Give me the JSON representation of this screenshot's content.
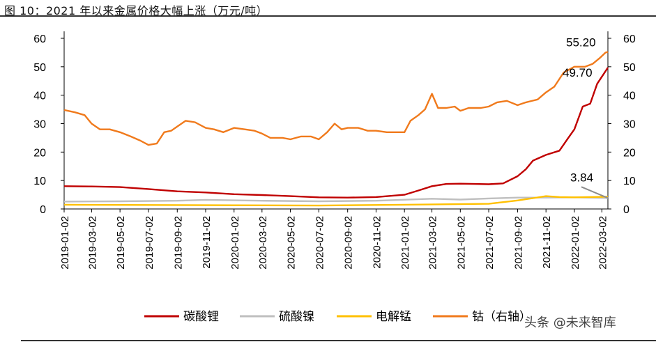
{
  "title": "图 10：2021 年以来金属价格大幅上涨（万元/吨）",
  "watermark": "头条 @未来智库",
  "colors": {
    "lithium_carbonate": "#c00000",
    "nickel_sulfate": "#bfbfbf",
    "manganese": "#ffc000",
    "cobalt": "#f07a1c",
    "axis": "#000000"
  },
  "chart_data": {
    "type": "line",
    "xlabel": "",
    "ylabel": "",
    "x_ticks": [
      "2019-01-02",
      "2019-03-02",
      "2019-05-02",
      "2019-07-02",
      "2019-09-02",
      "2019-11-02",
      "2020-01-02",
      "2020-03-02",
      "2020-05-02",
      "2020-07-02",
      "2020-09-02",
      "2020-11-02",
      "2021-01-02",
      "2021-03-02",
      "2021-05-02",
      "2021-07-02",
      "2021-09-02",
      "2021-11-02",
      "2022-01-02",
      "2022-03-02"
    ],
    "x_range": [
      "2019-01-02",
      "2022-03-15"
    ],
    "ylim_left": [
      0,
      60
    ],
    "ylim_right": [
      0,
      60
    ],
    "y_ticks": [
      0,
      10,
      20,
      30,
      40,
      50,
      60
    ],
    "legend_position": "bottom",
    "grid": false,
    "series": [
      {
        "name": "碳酸锂",
        "axis": "left",
        "points": [
          [
            "2019-01-02",
            8.0
          ],
          [
            "2019-03-02",
            7.9
          ],
          [
            "2019-05-02",
            7.7
          ],
          [
            "2019-07-02",
            7.0
          ],
          [
            "2019-09-02",
            6.2
          ],
          [
            "2019-11-02",
            5.8
          ],
          [
            "2020-01-02",
            5.2
          ],
          [
            "2020-03-02",
            4.9
          ],
          [
            "2020-05-02",
            4.5
          ],
          [
            "2020-07-02",
            4.1
          ],
          [
            "2020-09-02",
            4.0
          ],
          [
            "2020-11-02",
            4.2
          ],
          [
            "2021-01-02",
            5.0
          ],
          [
            "2021-02-01",
            6.5
          ],
          [
            "2021-03-02",
            8.0
          ],
          [
            "2021-04-02",
            8.8
          ],
          [
            "2021-05-02",
            8.9
          ],
          [
            "2021-06-02",
            8.8
          ],
          [
            "2021-07-02",
            8.7
          ],
          [
            "2021-08-02",
            9.0
          ],
          [
            "2021-09-02",
            11.5
          ],
          [
            "2021-09-20",
            14.0
          ],
          [
            "2021-10-05",
            17.0
          ],
          [
            "2021-11-02",
            19.0
          ],
          [
            "2021-12-01",
            20.5
          ],
          [
            "2021-12-20",
            25.0
          ],
          [
            "2022-01-02",
            28.0
          ],
          [
            "2022-01-20",
            36.0
          ],
          [
            "2022-02-05",
            37.0
          ],
          [
            "2022-02-20",
            44.0
          ],
          [
            "2022-03-15",
            49.7
          ]
        ]
      },
      {
        "name": "硫酸镍",
        "axis": "left",
        "points": [
          [
            "2019-01-02",
            2.6
          ],
          [
            "2019-05-02",
            2.7
          ],
          [
            "2019-09-02",
            2.9
          ],
          [
            "2019-11-02",
            3.2
          ],
          [
            "2020-03-02",
            2.9
          ],
          [
            "2020-07-02",
            2.7
          ],
          [
            "2020-11-02",
            2.9
          ],
          [
            "2021-03-02",
            3.6
          ],
          [
            "2021-05-02",
            3.3
          ],
          [
            "2021-07-02",
            3.7
          ],
          [
            "2021-09-02",
            4.0
          ],
          [
            "2021-11-02",
            4.0
          ],
          [
            "2022-01-02",
            4.1
          ],
          [
            "2022-03-15",
            3.84
          ]
        ]
      },
      {
        "name": "电解锰",
        "axis": "left",
        "points": [
          [
            "2019-01-02",
            1.5
          ],
          [
            "2019-07-02",
            1.4
          ],
          [
            "2020-01-02",
            1.3
          ],
          [
            "2020-07-02",
            1.2
          ],
          [
            "2021-01-02",
            1.5
          ],
          [
            "2021-07-02",
            1.8
          ],
          [
            "2021-09-02",
            3.0
          ],
          [
            "2021-10-05",
            3.8
          ],
          [
            "2021-11-02",
            4.5
          ],
          [
            "2021-12-01",
            4.2
          ],
          [
            "2022-01-02",
            4.1
          ],
          [
            "2022-03-15",
            4.3
          ]
        ]
      },
      {
        "name": "钴（右轴）",
        "axis": "right",
        "points": [
          [
            "2019-01-02",
            34.8
          ],
          [
            "2019-01-25",
            34.0
          ],
          [
            "2019-02-15",
            33.0
          ],
          [
            "2019-03-02",
            30.0
          ],
          [
            "2019-03-20",
            28.0
          ],
          [
            "2019-04-10",
            28.0
          ],
          [
            "2019-05-02",
            27.0
          ],
          [
            "2019-05-25",
            25.5
          ],
          [
            "2019-06-15",
            24.0
          ],
          [
            "2019-07-02",
            22.5
          ],
          [
            "2019-07-20",
            23.0
          ],
          [
            "2019-08-05",
            27.0
          ],
          [
            "2019-08-20",
            27.5
          ],
          [
            "2019-09-02",
            29.0
          ],
          [
            "2019-09-20",
            31.0
          ],
          [
            "2019-10-10",
            30.5
          ],
          [
            "2019-11-02",
            28.5
          ],
          [
            "2019-11-20",
            28.0
          ],
          [
            "2019-12-10",
            27.0
          ],
          [
            "2020-01-02",
            28.5
          ],
          [
            "2020-01-25",
            28.0
          ],
          [
            "2020-02-15",
            27.5
          ],
          [
            "2020-03-02",
            26.5
          ],
          [
            "2020-03-20",
            25.0
          ],
          [
            "2020-04-15",
            25.0
          ],
          [
            "2020-05-02",
            24.5
          ],
          [
            "2020-05-25",
            25.5
          ],
          [
            "2020-06-15",
            25.5
          ],
          [
            "2020-07-02",
            24.5
          ],
          [
            "2020-07-20",
            27.0
          ],
          [
            "2020-08-05",
            30.0
          ],
          [
            "2020-08-20",
            28.0
          ],
          [
            "2020-09-02",
            28.5
          ],
          [
            "2020-09-25",
            28.5
          ],
          [
            "2020-10-15",
            27.5
          ],
          [
            "2020-11-02",
            27.5
          ],
          [
            "2020-11-25",
            27.0
          ],
          [
            "2020-12-15",
            27.0
          ],
          [
            "2021-01-02",
            27.0
          ],
          [
            "2021-01-15",
            31.0
          ],
          [
            "2021-02-01",
            33.0
          ],
          [
            "2021-02-15",
            35.0
          ],
          [
            "2021-03-02",
            40.5
          ],
          [
            "2021-03-15",
            35.5
          ],
          [
            "2021-04-02",
            35.5
          ],
          [
            "2021-04-20",
            36.0
          ],
          [
            "2021-05-02",
            34.5
          ],
          [
            "2021-05-20",
            35.5
          ],
          [
            "2021-06-15",
            35.5
          ],
          [
            "2021-07-02",
            36.0
          ],
          [
            "2021-07-20",
            37.5
          ],
          [
            "2021-08-10",
            38.0
          ],
          [
            "2021-09-02",
            36.5
          ],
          [
            "2021-09-20",
            37.5
          ],
          [
            "2021-10-15",
            38.5
          ],
          [
            "2021-11-02",
            41.0
          ],
          [
            "2021-11-20",
            43.0
          ],
          [
            "2021-12-10",
            48.0
          ],
          [
            "2022-01-02",
            50.0
          ],
          [
            "2022-01-25",
            50.0
          ],
          [
            "2022-02-10",
            51.0
          ],
          [
            "2022-02-25",
            53.0
          ],
          [
            "2022-03-10",
            55.0
          ],
          [
            "2022-03-15",
            55.2
          ]
        ]
      }
    ],
    "annotations": [
      {
        "text": "55.20",
        "series": "钴（右轴）",
        "value": 55.2
      },
      {
        "text": "49.70",
        "series": "碳酸锂",
        "value": 49.7
      },
      {
        "text": "3.84",
        "series": "硫酸镍",
        "value": 3.84
      }
    ]
  }
}
